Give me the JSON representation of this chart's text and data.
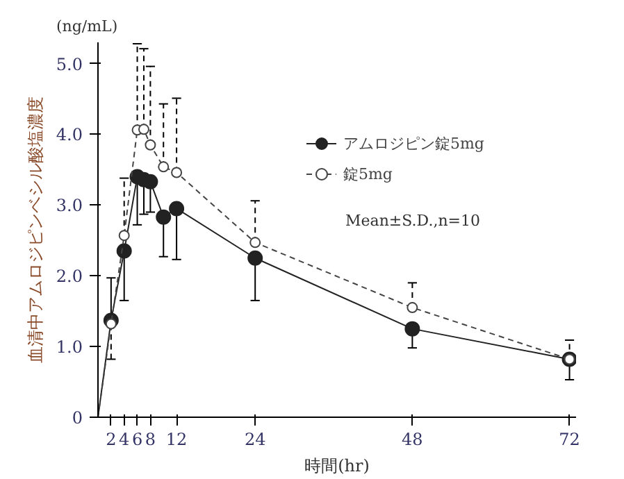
{
  "chart_data": {
    "type": "line",
    "ylabel": "血清中アムロジピンベシル酸塩濃度",
    "xlabel": "時間(hr)",
    "annotations": [
      "(ng/mL)",
      "Mean±S.D.,n=10"
    ],
    "x": [
      0,
      2,
      4,
      6,
      7,
      8,
      10,
      12,
      24,
      48,
      72
    ],
    "series": [
      {
        "name": "アムロジピン錠5mg",
        "color": "#222222",
        "line_style": "solid",
        "marker": "circle",
        "values": [
          0,
          1.37,
          2.35,
          3.4,
          3.36,
          3.33,
          2.83,
          2.95,
          2.25,
          1.25,
          0.82
        ],
        "errors": [
          null,
          [
            1.37,
            1.97
          ],
          [
            1.65,
            2.35
          ],
          [
            2.72,
            3.4
          ],
          [
            2.87,
            3.36
          ],
          [
            2.9,
            3.33
          ],
          [
            2.27,
            2.83
          ],
          [
            2.23,
            2.95
          ],
          [
            1.65,
            2.25
          ],
          [
            0.98,
            1.25
          ],
          [
            0.53,
            0.82
          ]
        ]
      },
      {
        "name": "錠5mg",
        "color": "#444444",
        "line_style": "dashed",
        "marker": "circle_open",
        "values": [
          0,
          1.32,
          2.57,
          4.06,
          4.07,
          3.85,
          3.54,
          3.46,
          2.47,
          1.55,
          0.82
        ],
        "errors": [
          null,
          [
            0.82,
            1.32
          ],
          [
            2.57,
            3.38
          ],
          [
            4.06,
            5.28
          ],
          [
            4.07,
            5.21
          ],
          [
            3.85,
            4.96
          ],
          [
            3.54,
            4.43
          ],
          [
            3.46,
            4.51
          ],
          [
            2.47,
            3.06
          ],
          [
            1.55,
            1.9
          ],
          [
            0.82,
            1.09
          ]
        ]
      }
    ],
    "xlim": [
      0,
      73
    ],
    "ylim": [
      0,
      5.3
    ],
    "xticks": [
      2,
      4,
      6,
      8,
      12,
      24,
      48,
      72
    ],
    "yticks": [
      {
        "value": 0,
        "label": "0"
      },
      {
        "value": 1,
        "label": "1.0"
      },
      {
        "value": 2,
        "label": "2.0"
      },
      {
        "value": 3,
        "label": "3.0"
      },
      {
        "value": 4,
        "label": "4.0"
      },
      {
        "value": 5,
        "label": "5.0"
      }
    ],
    "grid": false,
    "legend": "right"
  }
}
